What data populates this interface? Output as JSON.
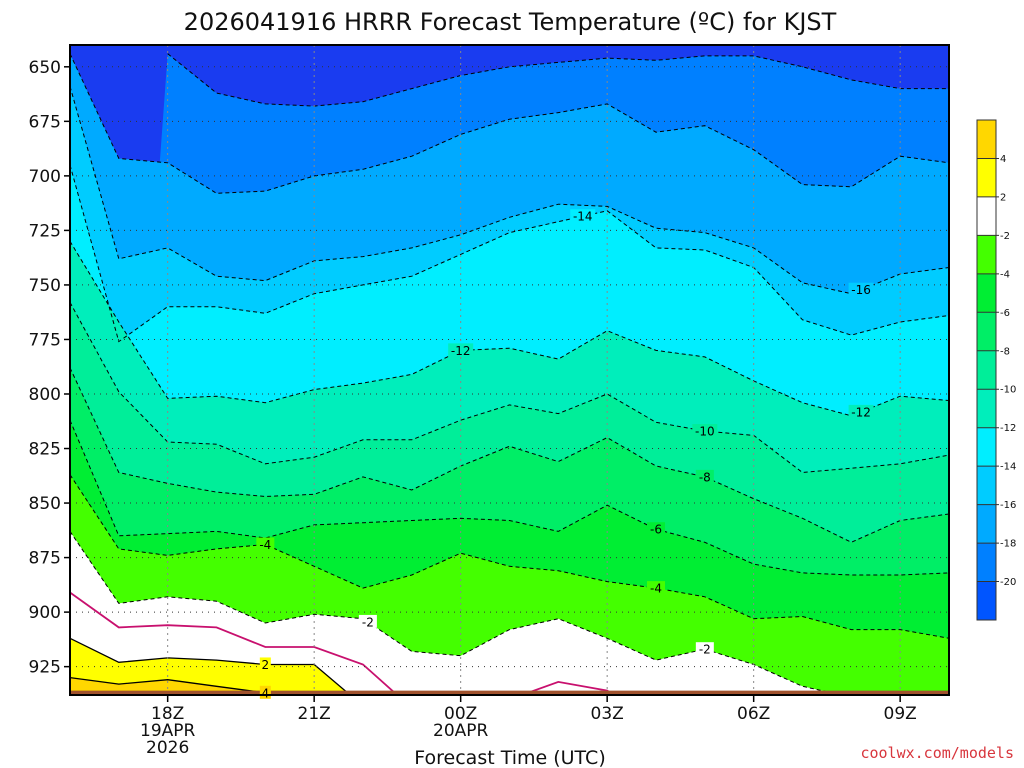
{
  "chart_data": {
    "type": "contour",
    "title": "2026041916 HRRR Forecast Temperature (ºC) for KJST",
    "xlabel": "Forecast Time (UTC)",
    "credit": "coolwx.com/models",
    "y_levels": [
      650,
      675,
      700,
      725,
      750,
      775,
      800,
      825,
      850,
      875,
      900,
      925
    ],
    "ylim": [
      640,
      938
    ],
    "y_reversed": true,
    "x_hours": [
      16,
      17,
      18,
      19,
      20,
      21,
      22,
      23,
      24,
      25,
      26,
      27,
      28,
      29,
      30,
      31,
      32,
      33,
      34
    ],
    "xlim": [
      16,
      34
    ],
    "x_ticks": [
      {
        "hour": 18,
        "lines": [
          "18Z",
          "19APR",
          "2026"
        ]
      },
      {
        "hour": 21,
        "lines": [
          "21Z"
        ]
      },
      {
        "hour": 24,
        "lines": [
          "00Z",
          "20APR"
        ]
      },
      {
        "hour": 27,
        "lines": [
          "03Z"
        ]
      },
      {
        "hour": 30,
        "lines": [
          "06Z"
        ]
      },
      {
        "hour": 33,
        "lines": [
          "09Z"
        ]
      }
    ],
    "ground_pressure": 936,
    "contour_interval": 2,
    "isotherms": [
      {
        "t": -20,
        "p": [
          null,
          null,
          644,
          662,
          667,
          668,
          666,
          660,
          654,
          650,
          648,
          646,
          647,
          645,
          645,
          650,
          656,
          660,
          660
        ]
      },
      {
        "t": -18,
        "p": [
          644,
          692,
          694,
          708,
          707,
          700,
          697,
          691,
          681,
          674,
          671,
          667,
          680,
          677,
          688,
          704,
          705,
          691,
          694
        ]
      },
      {
        "t": -16,
        "p": [
          659,
          738,
          733,
          746,
          748,
          739,
          737,
          733,
          727,
          719,
          713,
          714,
          724,
          726,
          733,
          749,
          754,
          745,
          742
        ]
      },
      {
        "t": -14,
        "p": [
          695,
          776,
          760,
          760,
          763,
          754,
          750,
          746,
          736,
          726,
          721,
          716,
          733,
          734,
          742,
          766,
          773,
          767,
          764
        ]
      },
      {
        "t": -12,
        "p": [
          730,
          767,
          802,
          801,
          804,
          798,
          795,
          791,
          780,
          779,
          784,
          771,
          780,
          783,
          794,
          804,
          810,
          801,
          803
        ]
      },
      {
        "t": -10,
        "p": [
          758,
          799,
          822,
          823,
          832,
          829,
          821,
          821,
          812,
          805,
          809,
          800,
          813,
          817,
          819,
          836,
          834,
          832,
          828
        ]
      },
      {
        "t": -8,
        "p": [
          788,
          836,
          841,
          845,
          847,
          846,
          838,
          844,
          833,
          824,
          831,
          820,
          833,
          838,
          848,
          857,
          868,
          858,
          855
        ]
      },
      {
        "t": -6,
        "p": [
          812,
          865,
          864,
          863,
          866,
          860,
          859,
          858,
          857,
          858,
          863,
          851,
          862,
          868,
          878,
          882,
          883,
          883,
          882
        ]
      },
      {
        "t": -4,
        "p": [
          837,
          871,
          874,
          871,
          869,
          879,
          889,
          883,
          873,
          879,
          881,
          886,
          889,
          893,
          903,
          902,
          908,
          908,
          912
        ]
      },
      {
        "t": -2,
        "p": [
          863,
          896,
          893,
          895,
          905,
          901,
          903,
          918,
          920,
          908,
          903,
          912,
          922,
          917,
          924,
          934,
          939,
          947,
          950
        ]
      },
      {
        "t": 0,
        "p": [
          891,
          907,
          906,
          907,
          916,
          916,
          924,
          944,
          954,
          940,
          932,
          936,
          951,
          945,
          957,
          962,
          970,
          975,
          978
        ]
      },
      {
        "t": 2,
        "p": [
          912,
          923,
          921,
          922,
          924,
          924,
          943,
          950,
          null,
          null,
          null,
          null,
          null,
          null,
          null,
          null,
          null,
          null,
          null
        ]
      },
      {
        "t": 4,
        "p": [
          930,
          933,
          931,
          934,
          937,
          939,
          null,
          null,
          null,
          null,
          null,
          null,
          null,
          null,
          null,
          null,
          null,
          null,
          null
        ]
      }
    ],
    "contour_labels": [
      {
        "t": -16,
        "hour": 32.2
      },
      {
        "t": -14,
        "hour": 26.5
      },
      {
        "t": -12,
        "hour": 24.0
      },
      {
        "t": -12,
        "hour": 32.2
      },
      {
        "t": -10,
        "hour": 29.0
      },
      {
        "t": -8,
        "hour": 29.0
      },
      {
        "t": -6,
        "hour": 28.0
      },
      {
        "t": -4,
        "hour": 20.0
      },
      {
        "t": -4,
        "hour": 28.0
      },
      {
        "t": -2,
        "hour": 22.1
      },
      {
        "t": -2,
        "hour": 29.0
      },
      {
        "t": 2,
        "hour": 20.0
      },
      {
        "t": 4,
        "hour": 20.0
      }
    ],
    "colorbar": {
      "ticks": [
        4,
        2,
        -2,
        -4,
        -6,
        -8,
        -10,
        -12,
        -14,
        -16,
        -18,
        -20
      ],
      "bands": [
        {
          "from": 4,
          "to": 6,
          "color": "#ffd700"
        },
        {
          "from": 2,
          "to": 4,
          "color": "#ffff00"
        },
        {
          "from": -2,
          "to": 2,
          "color": "#ffffff"
        },
        {
          "from": -4,
          "to": -2,
          "color": "#44ff00"
        },
        {
          "from": -6,
          "to": -4,
          "color": "#00ee33"
        },
        {
          "from": -8,
          "to": -6,
          "color": "#00ee66"
        },
        {
          "from": -10,
          "to": -8,
          "color": "#00ee99"
        },
        {
          "from": -12,
          "to": -10,
          "color": "#00eebb"
        },
        {
          "from": -14,
          "to": -12,
          "color": "#00eeff"
        },
        {
          "from": -16,
          "to": -14,
          "color": "#00ccff"
        },
        {
          "from": -18,
          "to": -16,
          "color": "#00aaff"
        },
        {
          "from": -20,
          "to": -18,
          "color": "#0080ff"
        },
        {
          "from": -22,
          "to": -20,
          "color": "#0055ff"
        }
      ]
    },
    "colors": {
      "coldest": "#1a3cf0",
      "freezing_line": "#c8106e",
      "ground": "#a0522d",
      "frame": "#000000",
      "grid": "#888888"
    }
  }
}
